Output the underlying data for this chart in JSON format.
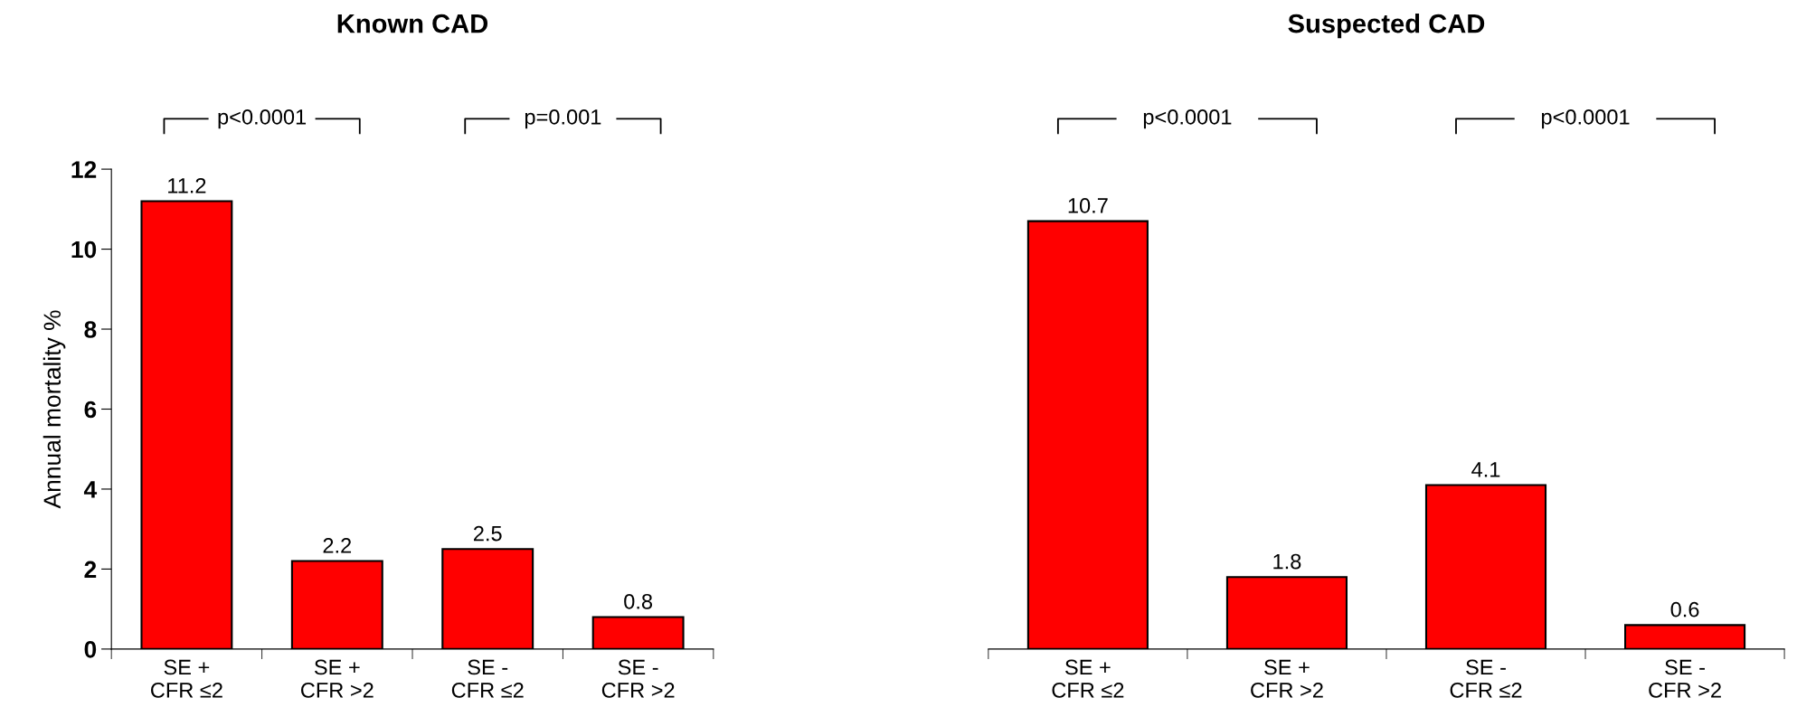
{
  "chart_data": [
    {
      "type": "bar",
      "title": "Known CAD",
      "ylabel": "Annual mortality %",
      "categories": [
        "SE +\nCFR ≤2",
        "SE +\nCFR >2",
        "SE -\nCFR ≤2",
        "SE -\nCFR >2"
      ],
      "values": [
        11.2,
        2.2,
        2.5,
        0.8
      ],
      "color": "#ff0000",
      "ylim": [
        0,
        12
      ],
      "yticks": [
        0,
        2,
        4,
        6,
        8,
        10,
        12
      ],
      "data_labels": true,
      "grid": false,
      "annotations": [
        "p<0.0001",
        "p=0.001"
      ]
    },
    {
      "type": "bar",
      "title": "Suspected CAD",
      "categories": [
        "SE +\nCFR ≤2",
        "SE +\nCFR >2",
        "SE -\nCFR ≤2",
        "SE -\nCFR >2"
      ],
      "values": [
        10.7,
        1.8,
        4.1,
        0.6
      ],
      "color": "#ff0000",
      "ylim": [
        0,
        12
      ],
      "yticks": [
        0,
        2,
        4,
        6,
        8,
        10,
        12
      ],
      "data_labels": true,
      "grid": false,
      "tick_labels": "x",
      "annotations": [
        "p<0.0001",
        "p<0.0001"
      ]
    }
  ]
}
